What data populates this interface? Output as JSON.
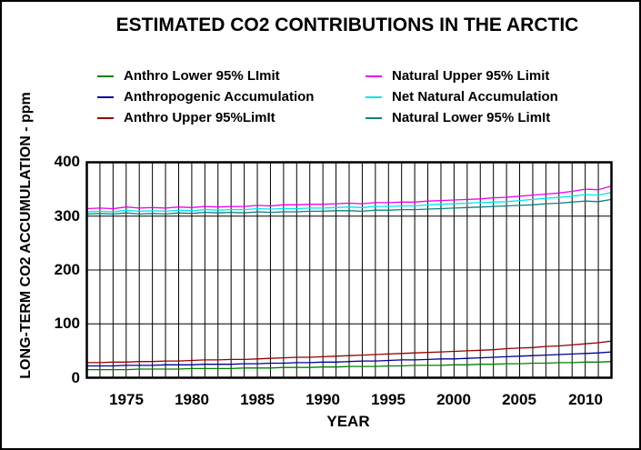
{
  "colors": {
    "background": "#FFFFFF",
    "frame": "#000000",
    "grid": "#000000",
    "text": "#000000"
  },
  "chart_data": {
    "type": "line",
    "title": "ESTIMATED CO2 CONTRIBUTIONS IN THE ARCTIC",
    "xlabel": "YEAR",
    "ylabel": "LONG-TERM CO2 ACCUMULATION - ppm",
    "xlim": [
      1972,
      2012
    ],
    "ylim": [
      0,
      400
    ],
    "x_ticks": [
      "1975",
      "1980",
      "1985",
      "1990",
      "1995",
      "2000",
      "2005",
      "2010"
    ],
    "y_ticks": [
      "400",
      "300",
      "200",
      "100",
      "0"
    ],
    "grid": {
      "vertical_lines": "every year 1973-2011",
      "horizontal_lines": [
        100,
        200,
        300
      ]
    },
    "legend_position": "top, two columns above plot",
    "x_start_year": 1972,
    "years_count": 41,
    "series": [
      {
        "name": "Anthro Lower 95% LImit",
        "color": "#008000",
        "values": [
          15,
          15,
          15,
          15,
          16,
          16,
          16,
          16,
          17,
          17,
          17,
          17,
          18,
          18,
          18,
          19,
          19,
          19,
          20,
          20,
          21,
          21,
          21,
          22,
          22,
          23,
          23,
          23,
          24,
          24,
          25,
          25,
          26,
          26,
          27,
          27,
          28,
          28,
          29,
          29,
          30
        ]
      },
      {
        "name": "Anthropogenic Accumulation",
        "color": "#000099",
        "values": [
          22,
          22,
          22,
          23,
          23,
          23,
          24,
          24,
          24,
          25,
          25,
          25,
          26,
          26,
          27,
          27,
          28,
          28,
          29,
          29,
          30,
          31,
          31,
          32,
          33,
          33,
          34,
          35,
          35,
          36,
          37,
          38,
          39,
          40,
          41,
          42,
          43,
          44,
          45,
          46,
          48
        ]
      },
      {
        "name": "Anthro Upper 95%LimIt",
        "color": "#990000",
        "values": [
          28,
          28,
          29,
          29,
          30,
          30,
          31,
          31,
          32,
          33,
          33,
          34,
          34,
          35,
          36,
          37,
          38,
          38,
          39,
          40,
          41,
          42,
          43,
          44,
          45,
          46,
          47,
          48,
          49,
          50,
          51,
          52,
          54,
          55,
          56,
          58,
          59,
          61,
          63,
          65,
          68
        ]
      },
      {
        "name": "Natural Upper 95% Limit",
        "color": "#EE00EE",
        "values": [
          314,
          315,
          314,
          317,
          315,
          316,
          315,
          317,
          316,
          318,
          317,
          318,
          318,
          320,
          319,
          321,
          321,
          322,
          322,
          323,
          324,
          323,
          325,
          325,
          326,
          326,
          328,
          329,
          330,
          331,
          332,
          334,
          335,
          337,
          339,
          341,
          343,
          346,
          350,
          349,
          356
        ]
      },
      {
        "name": "Net Natural Accumulation",
        "color": "#00E5EE",
        "values": [
          308,
          309,
          308,
          311,
          309,
          310,
          309,
          311,
          310,
          312,
          311,
          312,
          312,
          314,
          313,
          314,
          314,
          315,
          315,
          316,
          317,
          316,
          318,
          318,
          319,
          319,
          321,
          322,
          323,
          324,
          325,
          326,
          327,
          329,
          331,
          333,
          335,
          337,
          340,
          339,
          344
        ]
      },
      {
        "name": "Natural Lower 95% LimIt",
        "color": "#0E8080",
        "values": [
          304,
          305,
          304,
          306,
          304,
          305,
          304,
          306,
          305,
          307,
          306,
          307,
          306,
          308,
          307,
          308,
          308,
          309,
          309,
          310,
          310,
          309,
          311,
          311,
          312,
          312,
          313,
          314,
          315,
          316,
          317,
          318,
          319,
          320,
          321,
          323,
          324,
          326,
          328,
          327,
          331
        ]
      }
    ]
  }
}
